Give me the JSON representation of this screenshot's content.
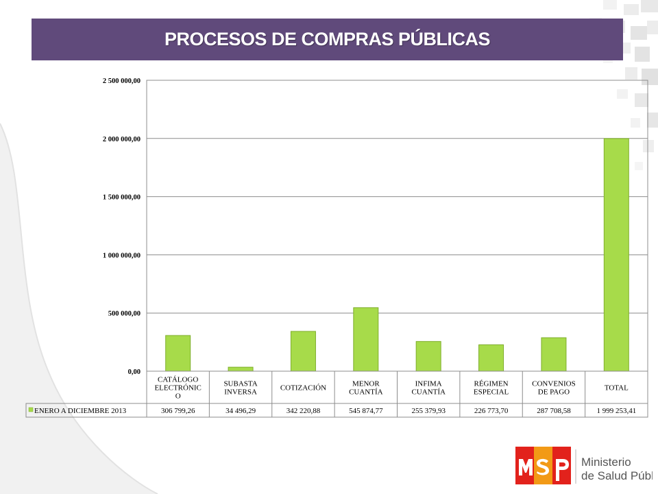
{
  "title": "PROCESOS DE COMPRAS PÚBLICAS",
  "chart_data": {
    "type": "bar",
    "categories": [
      [
        "CATÁLOGO",
        "ELECTRÓNIC",
        "O"
      ],
      [
        "SUBASTA",
        "INVERSA"
      ],
      [
        "COTIZACIÓN"
      ],
      [
        "MENOR",
        "CUANTÍA"
      ],
      [
        "INFIMA",
        "CUANTÍA"
      ],
      [
        "RÉGIMEN",
        "ESPECIAL"
      ],
      [
        "CONVENIOS",
        "DE PAGO"
      ],
      [
        "TOTAL"
      ]
    ],
    "series": [
      {
        "name": "ENERO A DICIEMBRE 2013",
        "values": [
          306799.26,
          34496.29,
          342220.88,
          545874.77,
          255379.93,
          226773.7,
          287708.58,
          1999253.41
        ],
        "labels": [
          "306 799,26",
          "34 496,29",
          "342 220,88",
          "545 874,77",
          "255 379,93",
          "226 773,70",
          "287 708,58",
          "1 999 253,41"
        ],
        "color": "#a7db4a"
      }
    ],
    "yticks": [
      0,
      500000,
      1000000,
      1500000,
      2000000,
      2500000
    ],
    "ytick_labels": [
      "0,00",
      "500 000,00",
      "1 000 000,00",
      "1 500 000,00",
      "2 000 000,00",
      "2 500 000,00"
    ],
    "ylim": [
      0,
      2500000
    ],
    "grid": true,
    "legend": "data-table"
  },
  "logo": {
    "primary": "Ministerio",
    "secondary": "de Salud Pública",
    "colors": [
      "#e2221c",
      "#f29a16"
    ]
  }
}
